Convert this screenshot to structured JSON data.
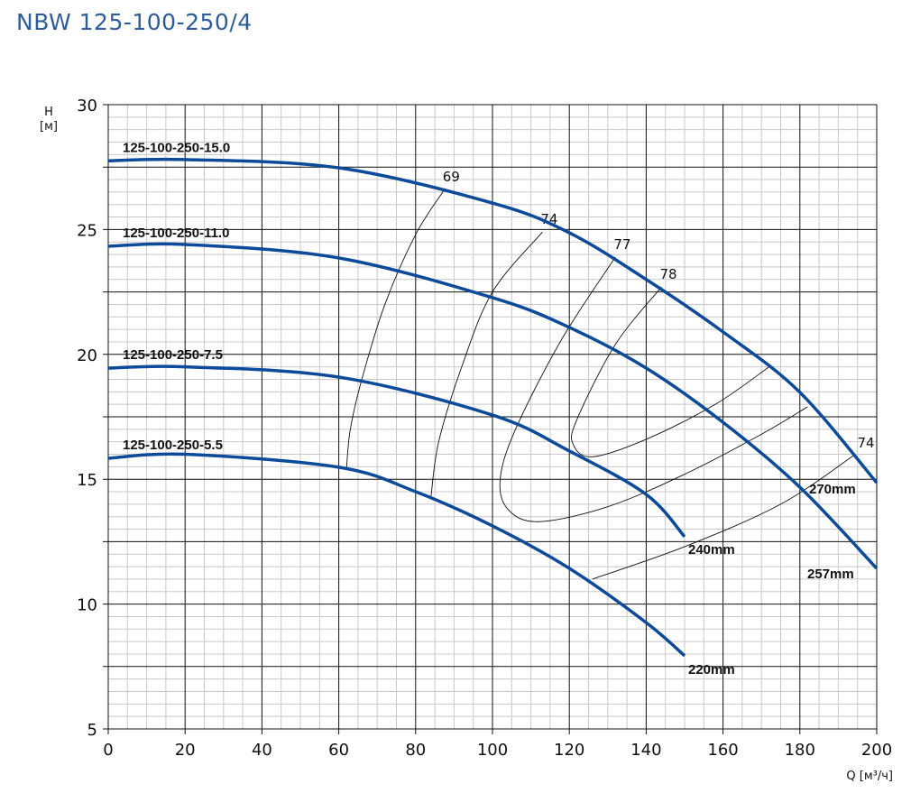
{
  "title": "NBW 125-100-250/4",
  "chart_data": {
    "type": "line",
    "title": "NBW 125-100-250/4",
    "xlabel": "Q [м³/ч]",
    "ylabel_line1": "H",
    "ylabel_line2": "[м]",
    "xlim": [
      0,
      200
    ],
    "ylim": [
      5,
      30
    ],
    "xticks": [
      0,
      20,
      40,
      60,
      80,
      100,
      120,
      140,
      160,
      180,
      200
    ],
    "yticks": [
      5,
      10,
      15,
      20,
      25,
      30
    ],
    "grid": true,
    "colors": {
      "pump": "#0d4a9a",
      "eff": "#111111",
      "grid_minor": "#c8c8cc",
      "grid_major": "#111111"
    },
    "series": [
      {
        "name": "125-100-250-15.0",
        "impeller": "270mm",
        "x": [
          0,
          20,
          60,
          100,
          120,
          140,
          160,
          180,
          200
        ],
        "y": [
          27.75,
          27.8,
          27.47,
          26.06,
          24.87,
          23.0,
          20.9,
          18.48,
          14.86
        ]
      },
      {
        "name": "125-100-250-11.0",
        "impeller": "257mm",
        "x": [
          0,
          20,
          60,
          100,
          120,
          140,
          160,
          180,
          200
        ],
        "y": [
          24.33,
          24.4,
          23.86,
          22.27,
          21.08,
          19.45,
          17.28,
          14.68,
          11.43
        ]
      },
      {
        "name": "125-100-250-7.5",
        "impeller": "240mm",
        "x": [
          0,
          20,
          60,
          100,
          120,
          140,
          150
        ],
        "y": [
          19.45,
          19.5,
          19.09,
          17.57,
          16.13,
          14.39,
          12.7
        ]
      },
      {
        "name": "125-100-250-5.5",
        "impeller": "220mm",
        "x": [
          0,
          20,
          60,
          80,
          100,
          120,
          140,
          150
        ],
        "y": [
          15.84,
          16.0,
          15.48,
          14.5,
          13.13,
          11.43,
          9.26,
          7.93
        ]
      }
    ],
    "efficiency": [
      {
        "label": "69",
        "x": [
          87.5,
          80,
          72,
          66,
          63,
          62
        ],
        "y": [
          26.6,
          24.8,
          22,
          19,
          17,
          15.4
        ]
      },
      {
        "label": "74",
        "x": [
          113,
          100,
          92,
          86,
          84
        ],
        "y": [
          24.9,
          22.5,
          19.5,
          16.5,
          14.3
        ]
      },
      {
        "label": "77",
        "x": [
          132,
          118,
          106,
          102,
          104,
          112,
          130,
          150,
          170,
          182
        ],
        "y": [
          23.9,
          20.6,
          17,
          15,
          13.8,
          13.3,
          13.9,
          15.2,
          16.8,
          17.9
        ]
      },
      {
        "label": "78",
        "x": [
          144,
          132,
          122,
          121,
          126,
          140,
          158,
          172
        ],
        "y": [
          22.7,
          20.4,
          17.4,
          16.4,
          15.9,
          16.6,
          18,
          19.5
        ]
      },
      {
        "label": "74",
        "x": [
          126,
          150,
          175,
          194
        ],
        "y": [
          11,
          12.3,
          14.0,
          15.95
        ]
      }
    ]
  }
}
